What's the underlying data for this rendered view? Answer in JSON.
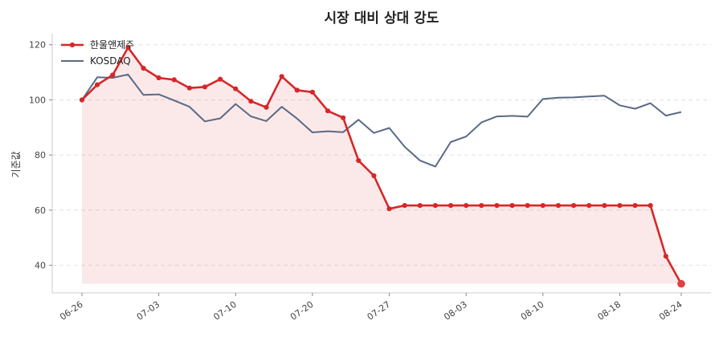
{
  "chart_data": {
    "type": "line",
    "title": "시장 대비 상대 강도",
    "xlabel": "",
    "ylabel": "기준값",
    "ylim": [
      30,
      124
    ],
    "yticks": [
      40,
      60,
      80,
      100,
      120
    ],
    "xtick_labels": [
      "06-26",
      "07-03",
      "07-10",
      "07-20",
      "07-27",
      "08-03",
      "08-10",
      "08-18",
      "08-24"
    ],
    "xtick_index": [
      0,
      5,
      10,
      15,
      20,
      25,
      30,
      35,
      39
    ],
    "grid": "horizontal dashed",
    "legend_position": "top-left",
    "series": [
      {
        "name": "한울앤제주",
        "color": "#d62728",
        "fill": true,
        "markers": true,
        "values": [
          100,
          105.5,
          109,
          119,
          111.5,
          108,
          107.3,
          104.3,
          104.7,
          107.5,
          104,
          99.5,
          97.3,
          108.5,
          103.5,
          102.8,
          96,
          93.5,
          78,
          72.5,
          60.5,
          61.7,
          61.7,
          61.7,
          61.7,
          61.7,
          61.7,
          61.7,
          61.7,
          61.7,
          61.7,
          61.7,
          61.7,
          61.7,
          61.7,
          61.7,
          61.7,
          61.7,
          43.3,
          33.3
        ]
      },
      {
        "name": "KOSDAQ",
        "color": "#5a6a85",
        "fill": false,
        "markers": false,
        "values": [
          100,
          108.2,
          108,
          109.2,
          101.8,
          102,
          99.8,
          97.5,
          92.2,
          93.3,
          98.5,
          94,
          92.3,
          97.5,
          93.2,
          88.2,
          88.6,
          88.3,
          92.8,
          88,
          89.8,
          83,
          78,
          75.8,
          84.7,
          86.7,
          91.8,
          94,
          94.2,
          93.9,
          100.3,
          100.8,
          100.9,
          101.2,
          101.5,
          98,
          96.8,
          98.8,
          94.3,
          95.6
        ]
      }
    ]
  }
}
